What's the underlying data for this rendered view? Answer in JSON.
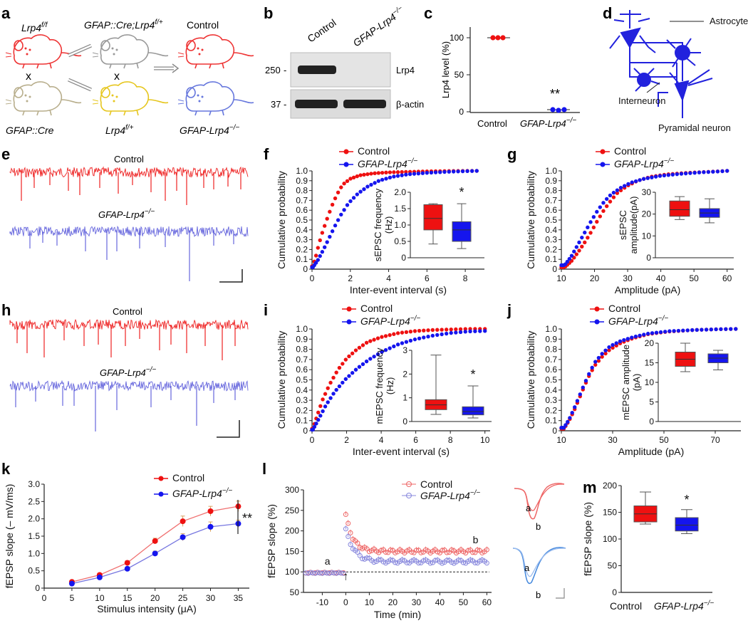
{
  "colors": {
    "red": "#ee1111",
    "blue": "#1515ee",
    "lightblue": "#7777e0",
    "trace_red": "#ee2222",
    "trace_blue": "#6666dd",
    "salmon": "#ee6666",
    "paleblue": "#8888dd",
    "gray": "#aaaaaa",
    "beige": "#c2b99a",
    "yellow": "#f2d84a",
    "neuron": "#2222dd",
    "text": "#111111"
  },
  "panels": {
    "a": "a",
    "b": "b",
    "c": "c",
    "d": "d",
    "e": "e",
    "f": "f",
    "g": "g",
    "h": "h",
    "i": "i",
    "j": "j",
    "k": "k",
    "l": "l",
    "m": "m"
  },
  "a": {
    "parent1": "Lrp4",
    "parent1_sup": "f/f",
    "parent2": "GFAP::Cre",
    "f1": "GFAP::Cre;Lrp4",
    "f1_sup": "f/+",
    "f1_mate": "Lrp4",
    "f1_mate_sup": "f/+",
    "ctrl": "Control",
    "ko": "GFAP-Lrp4",
    "ko_sup": "−/−",
    "cross": "x"
  },
  "b": {
    "col1": "Control",
    "col2": "GFAP-Lrp4",
    "col2_sup": "−/−",
    "mw1": "250",
    "mw2": "37",
    "band1": "Lrp4",
    "band2": "β-actin",
    "sep": "-"
  },
  "c": {
    "ylabel": "Lrp4 level (%)",
    "ticks": [
      "0",
      "50",
      "100"
    ],
    "xt1": "Control",
    "xt2": "GFAP-Lrp4",
    "xt2_sup": "−/−",
    "sig": "**"
  },
  "d": {
    "astro": "Astrocyte",
    "inter": "Interneuron",
    "pyr": "Pyramidal neuron"
  },
  "e": {
    "ctrl": "Control",
    "ko": "GFAP-Lrp4",
    "ko_sup": "−/−"
  },
  "h": {
    "ctrl": "Control",
    "ko": "GFAP-Lrp4",
    "ko_sup": "−/−"
  },
  "leg": {
    "ctrl": "Control",
    "ko": "GFAP-Lrp4",
    "ko_sup": "−/−"
  },
  "cum": {
    "ylabel": "Cumulative probability",
    "yticks": [
      "0",
      "0.1",
      "0.2",
      "0.3",
      "0.4",
      "0.5",
      "0.6",
      "0.7",
      "0.8",
      "0.9",
      "1.0"
    ]
  },
  "chart_data": [
    {
      "panel": "f",
      "type": "scatter",
      "title": "",
      "xlabel": "Inter-event interval (s)",
      "ylabel": "Cumulative probability",
      "xlim": [
        0,
        9
      ],
      "xticks": [
        "0",
        "2",
        "4",
        "6",
        "8"
      ],
      "ylim": [
        0,
        1
      ],
      "series": [
        {
          "name": "Control",
          "color": "red",
          "points": [
            [
              0.05,
              0.03
            ],
            [
              0.2,
              0.13
            ],
            [
              0.35,
              0.25
            ],
            [
              0.55,
              0.38
            ],
            [
              0.8,
              0.52
            ],
            [
              1.05,
              0.65
            ],
            [
              1.3,
              0.76
            ],
            [
              1.6,
              0.86
            ],
            [
              2.0,
              0.92
            ],
            [
              2.5,
              0.955
            ],
            [
              3.2,
              0.975
            ],
            [
              4.0,
              0.985
            ],
            [
              5.0,
              0.99
            ],
            [
              6.0,
              0.995
            ],
            [
              7.0,
              0.998
            ],
            [
              8.0,
              1.0
            ],
            [
              8.6,
              1.0
            ]
          ]
        },
        {
          "name": "GFAP-Lrp4−/−",
          "color": "blue",
          "points": [
            [
              0.05,
              0.02
            ],
            [
              0.3,
              0.09
            ],
            [
              0.6,
              0.2
            ],
            [
              0.9,
              0.32
            ],
            [
              1.2,
              0.44
            ],
            [
              1.5,
              0.55
            ],
            [
              1.9,
              0.67
            ],
            [
              2.4,
              0.77
            ],
            [
              2.9,
              0.84
            ],
            [
              3.5,
              0.9
            ],
            [
              4.2,
              0.94
            ],
            [
              5.0,
              0.965
            ],
            [
              6.0,
              0.98
            ],
            [
              7.0,
              0.99
            ],
            [
              8.0,
              0.997
            ],
            [
              8.6,
              1.0
            ]
          ]
        }
      ],
      "inset": {
        "type": "box",
        "ylabel": "sEPSC frequency (Hz)",
        "yticks": [
          "0",
          "0.5",
          "1.0",
          "1.5",
          "2.0"
        ],
        "ylim": [
          0,
          2
        ],
        "sig": "*",
        "boxes": [
          {
            "name": "Control",
            "color": "red",
            "min": 0.42,
            "q1": 0.85,
            "median": 1.2,
            "q3": 1.62,
            "max": 1.65
          },
          {
            "name": "GFAP-Lrp4−/−",
            "color": "blue",
            "min": 0.28,
            "q1": 0.5,
            "median": 0.85,
            "q3": 1.1,
            "max": 1.65
          }
        ]
      }
    },
    {
      "panel": "g",
      "type": "scatter",
      "title": "",
      "xlabel": "Amplitude (pA)",
      "ylabel": "Cumulative probability",
      "xlim": [
        10,
        62
      ],
      "xticks": [
        "10",
        "20",
        "30",
        "40",
        "50",
        "60"
      ],
      "ylim": [
        0,
        1
      ],
      "series": [
        {
          "name": "Control",
          "color": "red",
          "points": [
            [
              11,
              0.02
            ],
            [
              13,
              0.08
            ],
            [
              15,
              0.17
            ],
            [
              17,
              0.27
            ],
            [
              19,
              0.38
            ],
            [
              21,
              0.5
            ],
            [
              23,
              0.61
            ],
            [
              25,
              0.7
            ],
            [
              27,
              0.78
            ],
            [
              30,
              0.85
            ],
            [
              33,
              0.9
            ],
            [
              37,
              0.94
            ],
            [
              42,
              0.965
            ],
            [
              48,
              0.98
            ],
            [
              54,
              0.99
            ],
            [
              60,
              1.0
            ]
          ]
        },
        {
          "name": "GFAP-Lrp4−/−",
          "color": "blue",
          "points": [
            [
              11,
              0.04
            ],
            [
              13,
              0.13
            ],
            [
              15,
              0.25
            ],
            [
              17,
              0.37
            ],
            [
              19,
              0.49
            ],
            [
              21,
              0.6
            ],
            [
              23,
              0.69
            ],
            [
              25,
              0.76
            ],
            [
              28,
              0.83
            ],
            [
              31,
              0.88
            ],
            [
              35,
              0.92
            ],
            [
              40,
              0.95
            ],
            [
              46,
              0.97
            ],
            [
              52,
              0.985
            ],
            [
              58,
              0.995
            ],
            [
              60,
              1.0
            ]
          ]
        }
      ],
      "inset": {
        "type": "box",
        "ylabel": "sEPSC amplitude(pA)",
        "yticks": [
          "0",
          "10",
          "20",
          "30"
        ],
        "ylim": [
          0,
          30
        ],
        "sig": "",
        "boxes": [
          {
            "name": "Control",
            "color": "red",
            "min": 17.5,
            "q1": 19,
            "median": 22,
            "q3": 26,
            "max": 28
          },
          {
            "name": "GFAP-Lrp4−/−",
            "color": "blue",
            "min": 16,
            "q1": 18.5,
            "median": 20.5,
            "q3": 22.5,
            "max": 27
          }
        ]
      }
    },
    {
      "panel": "i",
      "type": "scatter",
      "title": "",
      "xlabel": "Inter-event interval (s)",
      "ylabel": "Cumulative probability",
      "xlim": [
        0,
        10.3
      ],
      "xticks": [
        "0",
        "2",
        "4",
        "6",
        "8",
        "10"
      ],
      "ylim": [
        0,
        1
      ],
      "series": [
        {
          "name": "Control",
          "color": "red",
          "points": [
            [
              0.05,
              0.02
            ],
            [
              0.3,
              0.15
            ],
            [
              0.6,
              0.3
            ],
            [
              1.0,
              0.45
            ],
            [
              1.5,
              0.6
            ],
            [
              2.0,
              0.71
            ],
            [
              2.6,
              0.8
            ],
            [
              3.2,
              0.87
            ],
            [
              4.0,
              0.92
            ],
            [
              5.0,
              0.96
            ],
            [
              6.0,
              0.98
            ],
            [
              7.0,
              0.99
            ],
            [
              8.0,
              0.995
            ],
            [
              9.0,
              1.0
            ],
            [
              10,
              1.0
            ]
          ]
        },
        {
          "name": "GFAP-Lrp4−/−",
          "color": "blue",
          "points": [
            [
              0.05,
              0.01
            ],
            [
              0.4,
              0.12
            ],
            [
              0.8,
              0.25
            ],
            [
              1.3,
              0.38
            ],
            [
              1.9,
              0.5
            ],
            [
              2.6,
              0.61
            ],
            [
              3.3,
              0.7
            ],
            [
              4.1,
              0.78
            ],
            [
              5.0,
              0.85
            ],
            [
              6.0,
              0.9
            ],
            [
              7.0,
              0.935
            ],
            [
              8.0,
              0.96
            ],
            [
              9.0,
              0.975
            ],
            [
              10,
              0.98
            ]
          ]
        }
      ],
      "inset": {
        "type": "box",
        "ylabel": "mEPSC frequency (Hz)",
        "yticks": [
          "0",
          "1",
          "2",
          "3"
        ],
        "ylim": [
          0,
          3
        ],
        "sig": "*",
        "boxes": [
          {
            "name": "Control",
            "color": "red",
            "min": 0.3,
            "q1": 0.5,
            "median": 0.7,
            "q3": 0.92,
            "max": 2.8
          },
          {
            "name": "GFAP-Lrp4−/−",
            "color": "blue",
            "min": 0.15,
            "q1": 0.28,
            "median": 0.42,
            "q3": 0.62,
            "max": 1.5
          }
        ]
      }
    },
    {
      "panel": "j",
      "type": "scatter",
      "title": "",
      "xlabel": "Amplitude (pA)",
      "ylabel": "Cumulative probability",
      "xlim": [
        10,
        80
      ],
      "xticks": [
        "10",
        "30",
        "50",
        "70"
      ],
      "ylim": [
        0,
        1
      ],
      "series": [
        {
          "name": "Control",
          "color": "red",
          "points": [
            [
              11,
              0.02
            ],
            [
              13,
              0.1
            ],
            [
              15,
              0.2
            ],
            [
              17,
              0.32
            ],
            [
              19,
              0.44
            ],
            [
              21,
              0.55
            ],
            [
              23,
              0.64
            ],
            [
              26,
              0.73
            ],
            [
              29,
              0.8
            ],
            [
              33,
              0.86
            ],
            [
              38,
              0.91
            ],
            [
              44,
              0.95
            ],
            [
              52,
              0.975
            ],
            [
              62,
              0.99
            ],
            [
              72,
              0.998
            ],
            [
              78,
              1.0
            ]
          ]
        },
        {
          "name": "GFAP-Lrp4−/−",
          "color": "blue",
          "points": [
            [
              11,
              0.03
            ],
            [
              13,
              0.11
            ],
            [
              15,
              0.22
            ],
            [
              17,
              0.34
            ],
            [
              19,
              0.46
            ],
            [
              21,
              0.57
            ],
            [
              23,
              0.67
            ],
            [
              26,
              0.76
            ],
            [
              29,
              0.83
            ],
            [
              33,
              0.88
            ],
            [
              38,
              0.92
            ],
            [
              44,
              0.955
            ],
            [
              52,
              0.978
            ],
            [
              62,
              0.99
            ],
            [
              72,
              0.998
            ],
            [
              78,
              1.0
            ]
          ]
        }
      ],
      "inset": {
        "type": "box",
        "ylabel": "mEPSC amplitude (pA)",
        "yticks": [
          "0",
          "5",
          "10",
          "15",
          "20"
        ],
        "ylim": [
          0,
          22
        ],
        "sig": "",
        "boxes": [
          {
            "name": "Control",
            "color": "red",
            "min": 14,
            "q1": 15.5,
            "median": 17.5,
            "q3": 19.5,
            "max": 22
          },
          {
            "name": "GFAP-Lrp4−/−",
            "color": "blue",
            "min": 14.5,
            "q1": 16.5,
            "median": 17.8,
            "q3": 19,
            "max": 20
          }
        ]
      }
    },
    {
      "panel": "k",
      "type": "line",
      "title": "",
      "xlabel": "Stimulus intensity (μA)",
      "ylabel": "fEPSP slope (– mV/ms)",
      "xlim": [
        0,
        37
      ],
      "xticks": [
        "0",
        "5",
        "10",
        "15",
        "20",
        "25",
        "30",
        "35"
      ],
      "ylim": [
        0,
        3
      ],
      "yticks": [
        "0",
        "0.5",
        "1.0",
        "1.5",
        "2.0",
        "2.5",
        "3.0"
      ],
      "sig": "**",
      "categories": [
        5,
        10,
        15,
        20,
        25,
        30,
        35
      ],
      "series": [
        {
          "name": "Control",
          "color": "red",
          "values": [
            0.18,
            0.38,
            0.73,
            1.36,
            1.93,
            2.22,
            2.36
          ],
          "err": [
            0.03,
            0.04,
            0.06,
            0.08,
            0.15,
            0.14,
            0.15
          ]
        },
        {
          "name": "GFAP-Lrp4−/−",
          "color": "blue",
          "values": [
            0.13,
            0.31,
            0.56,
            1.0,
            1.47,
            1.77,
            1.86
          ],
          "err": [
            0.03,
            0.04,
            0.05,
            0.07,
            0.1,
            0.14,
            0.1
          ]
        }
      ]
    },
    {
      "panel": "l",
      "type": "scatter",
      "title": "",
      "xlabel": "Time (min)",
      "ylabel": "fEPSP slope (%)",
      "xlim": [
        -18,
        62
      ],
      "xticks": [
        "-10",
        "0",
        "10",
        "20",
        "30",
        "40",
        "50",
        "60"
      ],
      "ylim": [
        50,
        300
      ],
      "yticks": [
        "50",
        "100",
        "150",
        "200",
        "250",
        "300"
      ],
      "baseline": 100,
      "annot_a": "a",
      "annot_b": "b",
      "arrow": "↑",
      "series": [
        {
          "name": "Control",
          "color": "salmon",
          "fn": "ctrl"
        },
        {
          "name": "GFAP-Lrp4−/−",
          "color": "paleblue",
          "fn": "ko"
        }
      ]
    },
    {
      "panel": "m",
      "type": "box",
      "title": "",
      "xlabel": "",
      "ylabel": "fEPSP slope (%)",
      "ylim": [
        0,
        200
      ],
      "yticks": [
        "0",
        "50",
        "100",
        "150",
        "200"
      ],
      "xt1": "Control",
      "xt2": "GFAP-Lrp4",
      "xt2_sup": "−/−",
      "sig": "*",
      "boxes": [
        {
          "name": "Control",
          "color": "red",
          "min": 128,
          "q1": 132,
          "median": 147,
          "q3": 162,
          "max": 188
        },
        {
          "name": "GFAP-Lrp4−/−",
          "color": "blue",
          "min": 110,
          "q1": 115,
          "median": 126,
          "q3": 140,
          "max": 155
        }
      ]
    }
  ],
  "l_traces": {
    "a": "a",
    "b": "b"
  }
}
